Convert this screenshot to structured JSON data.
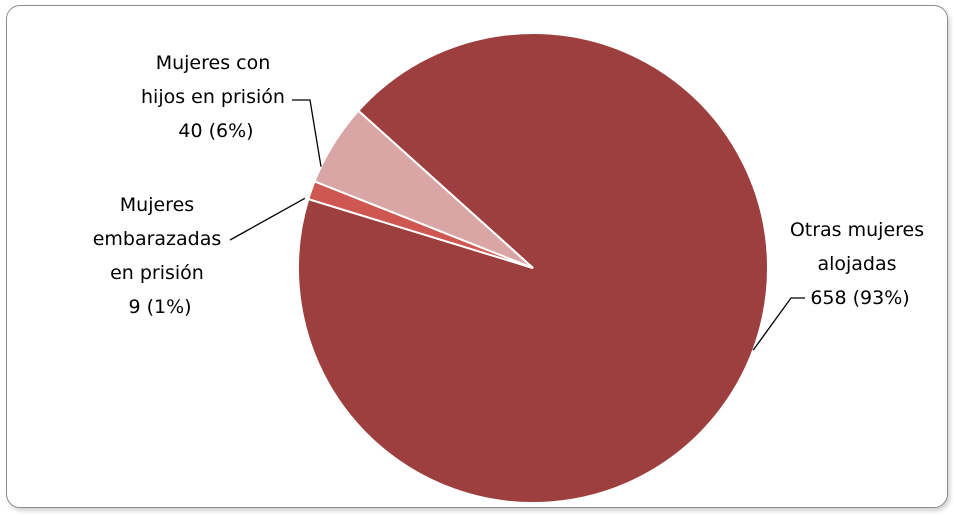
{
  "chart_data": {
    "type": "pie",
    "title": "",
    "legend": "none",
    "slices": [
      {
        "name": "Otras mujeres alojadas",
        "value": 658,
        "percent": "93%",
        "color": "#9c3f3e",
        "label_lines": [
          "Otras mujeres",
          "alojadas",
          "658 (93%)"
        ]
      },
      {
        "name": "Mujeres embarazadas en prisión",
        "value": 9,
        "percent": "1%",
        "color": "#ce5752",
        "label_lines": [
          "Mujeres",
          "embarazadas",
          "en prisión",
          "9 (1%)"
        ]
      },
      {
        "name": "Mujeres con hijos en prisión",
        "value": 40,
        "percent": "6%",
        "color": "#d9a5a5",
        "label_lines": [
          "Mujeres con",
          "hijos en prisión",
          "40 (6%)"
        ]
      }
    ]
  }
}
